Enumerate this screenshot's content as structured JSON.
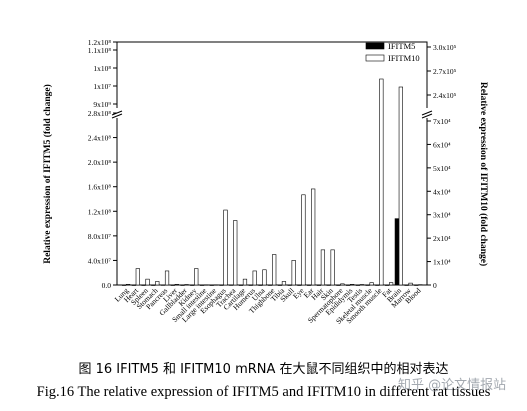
{
  "chart_data": {
    "type": "bar",
    "ylabel": "Relative expression of IFITM5 (fold change)",
    "y2label": "Relative expression of IFITM10 (fold change)",
    "legend": {
      "placement": "top-right"
    },
    "categories": [
      "Lung",
      "Heart",
      "Spleen",
      "Stomach",
      "Pancreas",
      "Liver",
      "Gallbladder",
      "Kidney",
      "Small intestine",
      "Large intestine",
      "Esophagus",
      "Trachea",
      "Cartilage",
      "Humerus",
      "Ulna",
      "Thighbone",
      "Tibia",
      "Skull",
      "Eye",
      "Ear",
      "Hair",
      "Skin",
      "Spermatophore",
      "Epididymis",
      "Testis",
      "Skeletal muscle",
      "Smooth muscle",
      "Fat",
      "Brain",
      "Marrow",
      "Blood"
    ],
    "series": [
      {
        "name": "IFITM5",
        "axis": "left",
        "color": "#000000",
        "values": [
          30,
          300,
          350,
          420,
          170000,
          6000,
          200,
          100,
          100,
          100,
          61000,
          135000,
          10000,
          41000,
          26000,
          63000,
          13000,
          45000,
          8000,
          6500,
          8000,
          94000,
          200,
          200,
          200,
          42000,
          25000,
          2000,
          108000000,
          2200,
          100
        ]
      },
      {
        "name": "IFITM10",
        "axis": "right",
        "color": "#ffffff",
        "values": [
          300,
          7000,
          2500,
          1500,
          6000,
          300,
          200,
          7000,
          100,
          100,
          32000,
          27500,
          2500,
          6000,
          6500,
          13000,
          1500,
          10500,
          38500,
          41000,
          15000,
          15000,
          500,
          300,
          200,
          1000,
          260000,
          1000,
          250000,
          800,
          150
        ]
      }
    ],
    "y_left": {
      "lower_ticks": [
        "0.0",
        "4.0x10⁷",
        "8.0x10⁷",
        "1.2x10⁸",
        "1.6x10⁸",
        "2.0x10⁸",
        "2.4x10⁸",
        "2.8x10⁸"
      ],
      "upper_ticks": [
        "9x10⁹",
        "1x10⁷",
        "1x10⁸",
        "1.1x10⁸",
        "1.2x10⁸"
      ]
    },
    "y_right": {
      "lower_ticks": [
        "0",
        "1x10⁴",
        "2x10⁴",
        "3x10⁴",
        "4x10⁴",
        "5x10⁴",
        "6x10⁴",
        "7x10⁴"
      ],
      "upper_ticks": [
        "2.4x10⁵",
        "2.7x10⁵",
        "3.0x10⁵"
      ]
    }
  },
  "captions": {
    "zh": "图  16 IFITM5 和 IFITM10 mRNA 在大鼠不同组织中的相对表达",
    "en": "Fig.16 The relative expression of IFITM5 and IFITM10 in different rat tissues"
  },
  "watermark": "知乎 @论文情报站"
}
